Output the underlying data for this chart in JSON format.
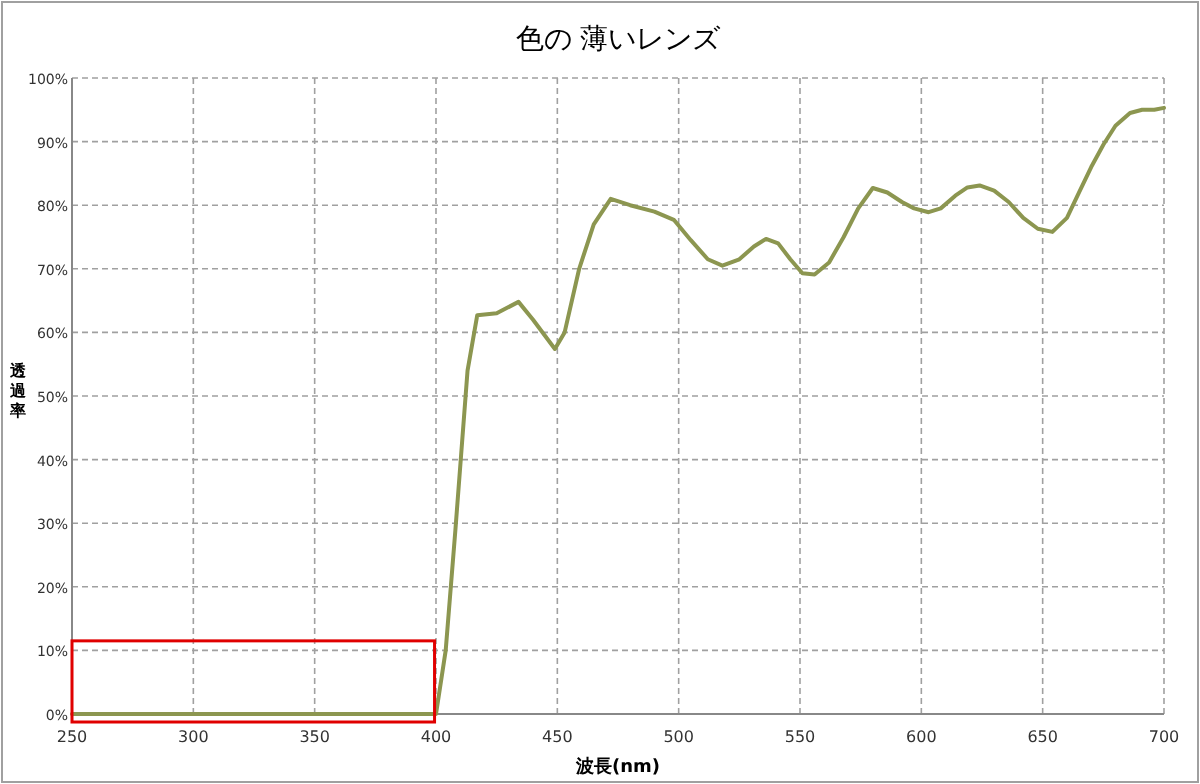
{
  "chart_data": {
    "type": "line",
    "title": "色の 薄いレンズ",
    "xlabel": "波長(nm)",
    "ylabel": "透過率",
    "xlim": [
      250,
      700
    ],
    "xticks": [
      250,
      300,
      350,
      400,
      450,
      500,
      550,
      600,
      650,
      700
    ],
    "ylim": [
      0,
      100
    ],
    "yticks": [
      {
        "value": 0,
        "label": "0%"
      },
      {
        "value": 10,
        "label": "10%"
      },
      {
        "value": 20,
        "label": "20%"
      },
      {
        "value": 30,
        "label": "30%"
      },
      {
        "value": 40,
        "label": "40%"
      },
      {
        "value": 50,
        "label": "50%"
      },
      {
        "value": 60,
        "label": "60%"
      },
      {
        "value": 70,
        "label": "70%"
      },
      {
        "value": 80,
        "label": "80%"
      },
      {
        "value": 90,
        "label": "90%"
      },
      {
        "value": 100,
        "label": "100%"
      }
    ],
    "grid": true,
    "marker": "none",
    "series": [
      {
        "color": "#8c9650",
        "x": [
          250,
          300,
          350,
          395,
          400,
          404,
          408,
          413,
          417,
          425,
          434,
          440,
          449,
          453,
          459,
          465,
          472,
          480,
          490,
          498,
          505,
          512,
          518,
          525,
          531,
          536,
          541,
          546,
          551,
          556,
          562,
          568,
          574,
          580,
          586,
          592,
          597,
          603,
          608,
          614,
          619,
          624,
          630,
          636,
          642,
          648,
          654,
          660,
          665,
          670,
          675,
          680,
          686,
          691,
          696,
          700
        ],
        "values": [
          0,
          0,
          0,
          0,
          0,
          10,
          29,
          54,
          62.7,
          63,
          64.8,
          62,
          57.4,
          60,
          70,
          77,
          81,
          80,
          79,
          77.7,
          74.5,
          71.5,
          70.5,
          71.5,
          73.5,
          74.7,
          74,
          71.5,
          69.3,
          69.1,
          71,
          75,
          79.5,
          82.7,
          82,
          80.5,
          79.5,
          78.9,
          79.5,
          81.5,
          82.8,
          83.1,
          82.3,
          80.5,
          78,
          76.3,
          75.8,
          78,
          82,
          86,
          89.5,
          92.5,
          94.5,
          95,
          95,
          95.3
        ]
      }
    ]
  }
}
